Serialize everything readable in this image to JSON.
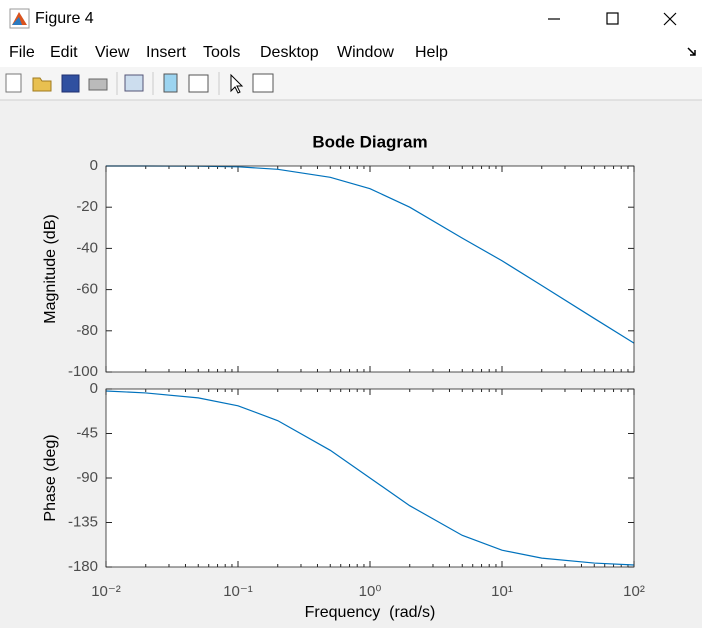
{
  "window": {
    "title": "Figure 4",
    "menu": [
      "File",
      "Edit",
      "View",
      "Insert",
      "Tools",
      "Desktop",
      "Window",
      "Help"
    ]
  },
  "chart_data": [
    {
      "type": "line",
      "title": "Bode Diagram",
      "ylabel": "Magnitude (dB)",
      "xscale": "log",
      "x": [
        0.01,
        0.02,
        0.05,
        0.1,
        0.2,
        0.5,
        1,
        2,
        5,
        10,
        20,
        50,
        100
      ],
      "series": [
        {
          "color": "#0072bd",
          "values": [
            0,
            0,
            -0.1,
            -0.4,
            -1.6,
            -5.5,
            -11,
            -20,
            -35,
            -46,
            -58,
            -74,
            -86
          ]
        }
      ],
      "xlim": [
        0.01,
        100
      ],
      "xticks": [
        0.01,
        0.1,
        1,
        10,
        100
      ],
      "ylim": [
        -100,
        0
      ],
      "yticks": [
        -100,
        -80,
        -60,
        -40,
        -20,
        0
      ]
    },
    {
      "type": "line",
      "ylabel": "Phase (deg)",
      "xlabel": "Frequency  (rad/s)",
      "xscale": "log",
      "x": [
        0.01,
        0.02,
        0.05,
        0.1,
        0.2,
        0.5,
        1,
        2,
        5,
        10,
        20,
        50,
        100
      ],
      "series": [
        {
          "color": "#0072bd",
          "values": [
            -2,
            -4,
            -9,
            -17,
            -32,
            -62,
            -90,
            -118,
            -148,
            -163,
            -171,
            -176,
            -178
          ]
        }
      ],
      "xlim": [
        0.01,
        100
      ],
      "xticks": [
        {
          "value": 0.01,
          "label": "10⁻²"
        },
        {
          "value": 0.1,
          "label": "10⁻¹"
        },
        {
          "value": 1,
          "label": "10⁰"
        },
        {
          "value": 10,
          "label": "10¹"
        },
        {
          "value": 100,
          "label": "10²"
        }
      ],
      "ylim": [
        -180,
        0
      ],
      "yticks": [
        -180,
        -135,
        -90,
        -45,
        0
      ]
    }
  ]
}
